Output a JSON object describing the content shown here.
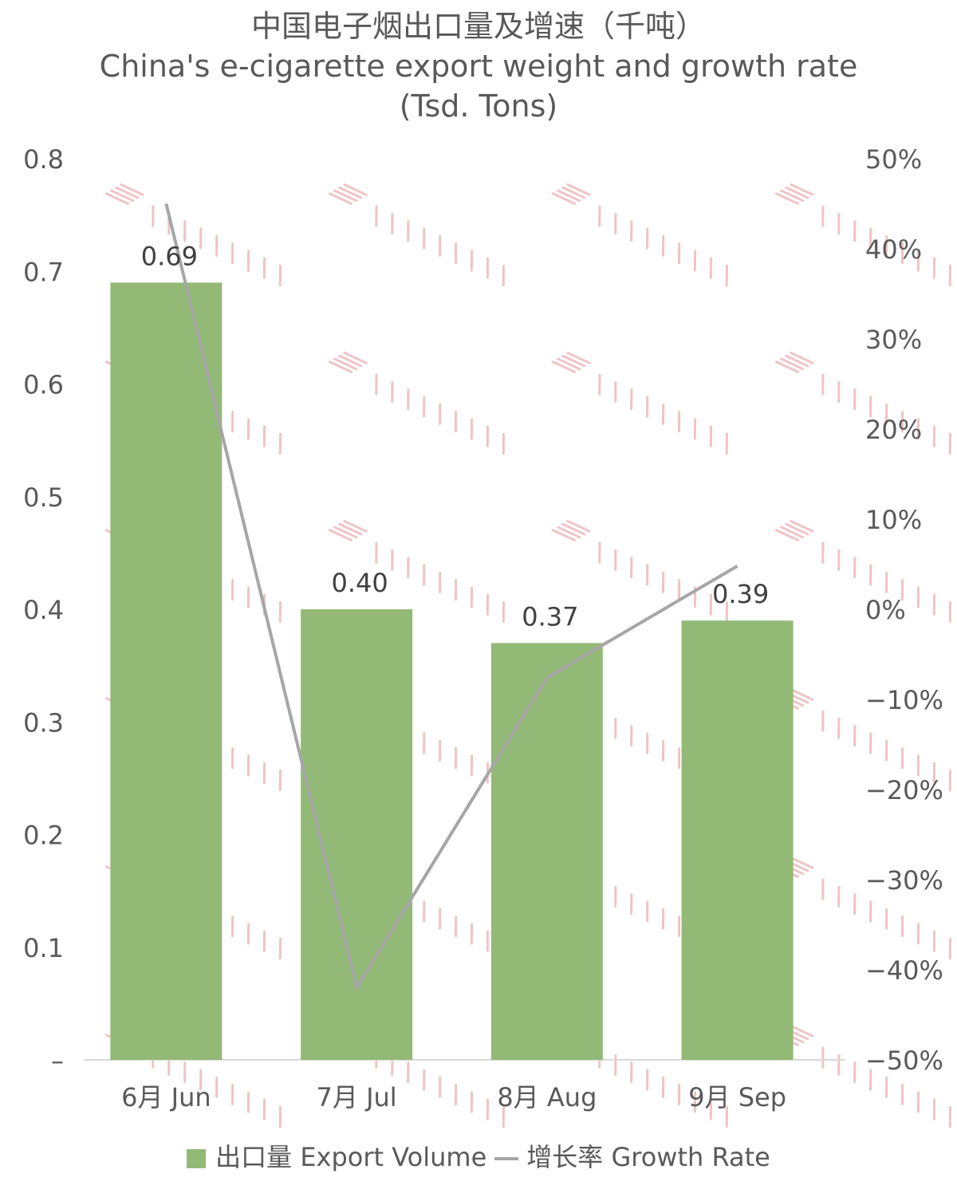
{
  "chart_data": {
    "type": "bar+line",
    "title_cn": "中国电子烟出口量及增速（千吨）",
    "title_en": "China's e-cigarette export weight and growth rate (Tsd. Tons)",
    "categories": [
      "6月 Jun",
      "7月 Jul",
      "8月 Aug",
      "9月 Sep"
    ],
    "series": [
      {
        "name": "出口量 Export Volume",
        "type": "bar",
        "axis": "left",
        "values": [
          0.69,
          0.4,
          0.37,
          0.39
        ],
        "data_labels": [
          "0.69",
          "0.40",
          "0.37",
          "0.39"
        ],
        "color": "#93b977"
      },
      {
        "name": "增长率 Growth Rate",
        "type": "line",
        "axis": "right",
        "values": [
          45,
          -42,
          -7.6,
          4.8
        ],
        "unit": "%",
        "color": "#a6a6a6"
      }
    ],
    "left_axis": {
      "ylim": [
        0,
        0.8
      ],
      "ticks": [
        "–",
        "0.1",
        "0.2",
        "0.3",
        "0.4",
        "0.5",
        "0.6",
        "0.7",
        "0.8"
      ]
    },
    "right_axis": {
      "ylim": [
        -50,
        50
      ],
      "ticks": [
        "−50%",
        "−40%",
        "−30%",
        "−20%",
        "−10%",
        "0%",
        "10%",
        "20%",
        "30%",
        "40%",
        "50%"
      ]
    },
    "grid": false,
    "legend_position": "bottom"
  },
  "watermark": "2FIRSTS 两个至上"
}
